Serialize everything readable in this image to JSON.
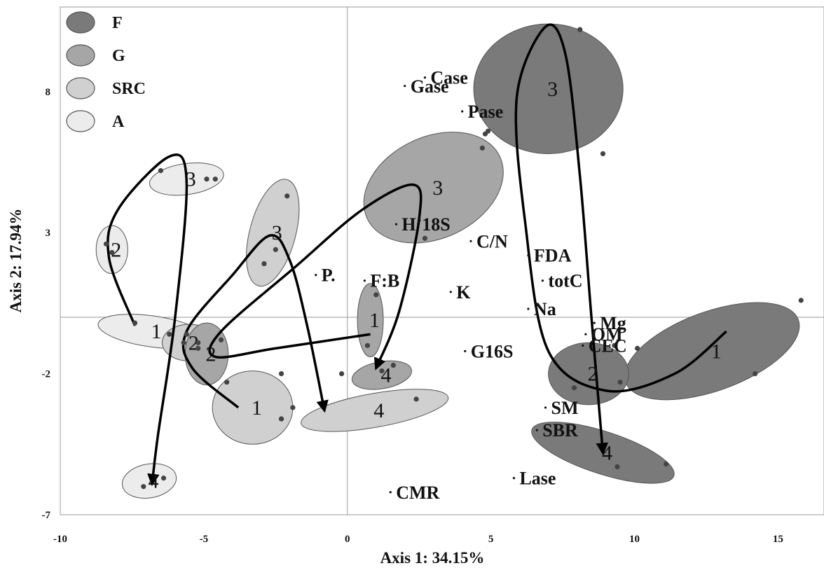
{
  "chart_data": {
    "type": "scatter",
    "xlabel": "Axis 1: 34.15%",
    "ylabel": "Axis 2: 17.94%",
    "xlim": [
      -10,
      17
    ],
    "ylim": [
      -7,
      11
    ],
    "x_ticks": [
      "-10",
      "-5",
      "0",
      "5",
      "10",
      "15"
    ],
    "y_ticks": [
      "8",
      "3",
      "-2",
      "-7"
    ],
    "legend": {
      "placement": "top-left",
      "entries": [
        {
          "name": "F",
          "color": "#7a7a7a"
        },
        {
          "name": "G",
          "color": "#a6a6a6"
        },
        {
          "name": "SRC",
          "color": "#d0d0d0"
        },
        {
          "name": "A",
          "color": "#ececec"
        }
      ]
    },
    "groups": [
      {
        "treatment": "A",
        "time": "1",
        "fill": "#ececec",
        "center": [
          -6.8,
          -0.5
        ],
        "rx": 1.9,
        "ry": 0.55,
        "rot": 8,
        "points": [
          [
            -7.4,
            -0.2
          ],
          [
            -6.2,
            -0.6
          ],
          [
            -5.7,
            -0.9
          ]
        ]
      },
      {
        "treatment": "A",
        "time": "2",
        "fill": "#ececec",
        "center": [
          -8.2,
          2.4
        ],
        "rx": 0.55,
        "ry": 0.85,
        "rot": 0,
        "points": [
          [
            -8.4,
            2.6
          ],
          [
            -8.2,
            2.3
          ]
        ]
      },
      {
        "treatment": "A",
        "time": "3",
        "fill": "#ececec",
        "center": [
          -5.6,
          4.9
        ],
        "rx": 1.3,
        "ry": 0.55,
        "rot": -8,
        "points": [
          [
            -6.5,
            5.2
          ],
          [
            -4.9,
            4.9
          ],
          [
            -4.6,
            4.9
          ]
        ]
      },
      {
        "treatment": "A",
        "time": "4",
        "fill": "#ececec",
        "center": [
          -6.9,
          -5.8
        ],
        "rx": 0.95,
        "ry": 0.6,
        "rot": -10,
        "points": [
          [
            -7.1,
            -6.0
          ],
          [
            -6.4,
            -5.7
          ]
        ]
      },
      {
        "treatment": "SRC",
        "time": "1",
        "fill": "#d0d0d0",
        "center": [
          -3.3,
          -3.2
        ],
        "rx": 1.4,
        "ry": 1.3,
        "rot": 0,
        "points": [
          [
            -4.2,
            -2.3
          ],
          [
            -2.3,
            -2.0
          ],
          [
            -1.9,
            -3.2
          ],
          [
            -2.3,
            -3.6
          ]
        ]
      },
      {
        "treatment": "SRC",
        "time": "2",
        "fill": "#d0d0d0",
        "center": [
          -5.5,
          -0.9
        ],
        "rx": 0.95,
        "ry": 0.65,
        "rot": 0,
        "points": [
          [
            -5.6,
            -0.6
          ],
          [
            -5.2,
            -1.1
          ]
        ]
      },
      {
        "treatment": "SRC",
        "time": "3",
        "fill": "#d0d0d0",
        "center": [
          -2.6,
          3.0
        ],
        "rx": 0.8,
        "ry": 1.95,
        "rot": 15,
        "points": [
          [
            -2.1,
            4.3
          ],
          [
            -2.5,
            2.4
          ],
          [
            -2.9,
            1.9
          ]
        ]
      },
      {
        "treatment": "SRC",
        "time": "4",
        "fill": "#d0d0d0",
        "center": [
          0.95,
          -3.3
        ],
        "rx": 2.6,
        "ry": 0.6,
        "rot": -10,
        "points": [
          [
            2.4,
            -2.9
          ],
          [
            -2.3,
            -3.6
          ]
        ]
      },
      {
        "treatment": "G",
        "time": "1",
        "fill": "#a6a6a6",
        "center": [
          0.8,
          -0.1
        ],
        "rx": 0.45,
        "ry": 1.3,
        "rot": 0,
        "points": [
          [
            1.0,
            0.8
          ],
          [
            0.7,
            -1.0
          ]
        ]
      },
      {
        "treatment": "G",
        "time": "2",
        "fill": "#a6a6a6",
        "center": [
          -4.9,
          -1.3
        ],
        "rx": 0.75,
        "ry": 1.1,
        "rot": 0,
        "points": [
          [
            -4.4,
            -0.8
          ],
          [
            -5.2,
            -0.9
          ]
        ]
      },
      {
        "treatment": "G",
        "time": "3",
        "fill": "#a6a6a6",
        "center": [
          3.0,
          4.6
        ],
        "rx": 2.55,
        "ry": 1.8,
        "rot": -25,
        "points": [
          [
            4.7,
            6.0
          ],
          [
            4.8,
            6.5
          ],
          [
            2.7,
            2.8
          ]
        ]
      },
      {
        "treatment": "G",
        "time": "4",
        "fill": "#a6a6a6",
        "center": [
          1.2,
          -2.05
        ],
        "rx": 1.05,
        "ry": 0.48,
        "rot": -10,
        "points": [
          [
            -0.2,
            -2.0
          ],
          [
            1.6,
            -1.7
          ],
          [
            1.2,
            -1.9
          ]
        ]
      },
      {
        "treatment": "F",
        "time": "1",
        "fill": "#7a7a7a",
        "center": [
          12.7,
          -1.2
        ],
        "rx": 3.2,
        "ry": 1.4,
        "rot": -20,
        "points": [
          [
            15.8,
            0.6
          ],
          [
            10.1,
            -1.1
          ],
          [
            14.2,
            -2.0
          ]
        ]
      },
      {
        "treatment": "F",
        "time": "2",
        "fill": "#7a7a7a",
        "center": [
          8.4,
          -2.0
        ],
        "rx": 1.4,
        "ry": 1.1,
        "rot": 0,
        "points": [
          [
            7.9,
            -2.5
          ],
          [
            9.3,
            -1.0
          ],
          [
            9.5,
            -2.3
          ]
        ]
      },
      {
        "treatment": "F",
        "time": "3",
        "fill": "#7a7a7a",
        "center": [
          7.0,
          8.1
        ],
        "rx": 2.6,
        "ry": 2.3,
        "rot": 0,
        "points": [
          [
            8.1,
            10.2
          ],
          [
            8.9,
            5.8
          ],
          [
            4.9,
            6.6
          ]
        ]
      },
      {
        "treatment": "F",
        "time": "4",
        "fill": "#7a7a7a",
        "center": [
          8.9,
          -4.8
        ],
        "rx": 2.6,
        "ry": 0.75,
        "rot": 18,
        "points": [
          [
            9.4,
            -5.3
          ],
          [
            11.1,
            -5.2
          ]
        ]
      }
    ],
    "vectors": [
      {
        "name": "Case",
        "x": 2.7,
        "y": 8.5
      },
      {
        "name": "Gase",
        "x": 2.0,
        "y": 8.2
      },
      {
        "name": "Pase",
        "x": 4.0,
        "y": 7.3
      },
      {
        "name": "H’18S",
        "x": 1.7,
        "y": 3.3
      },
      {
        "name": "C/N",
        "x": 4.3,
        "y": 2.7
      },
      {
        "name": "FDA",
        "x": 6.3,
        "y": 2.2
      },
      {
        "name": "P.",
        "x": -1.1,
        "y": 1.5
      },
      {
        "name": "F:B",
        "x": 0.6,
        "y": 1.3
      },
      {
        "name": "totC",
        "x": 6.8,
        "y": 1.3
      },
      {
        "name": "K",
        "x": 3.6,
        "y": 0.9
      },
      {
        "name": "Na",
        "x": 6.3,
        "y": 0.3
      },
      {
        "name": "Mg",
        "x": 8.6,
        "y": -0.2
      },
      {
        "name": "OM",
        "x": 8.3,
        "y": -0.6
      },
      {
        "name": "CEC",
        "x": 8.2,
        "y": -1.0
      },
      {
        "name": "G16S",
        "x": 4.1,
        "y": -1.2
      },
      {
        "name": "SM",
        "x": 6.9,
        "y": -3.2
      },
      {
        "name": "SBR",
        "x": 6.6,
        "y": -4.0
      },
      {
        "name": "Lase",
        "x": 5.8,
        "y": -5.7
      },
      {
        "name": "CMR",
        "x": 1.5,
        "y": -6.2
      }
    ],
    "trajectories": [
      {
        "treatment": "A",
        "sequence": [
          "1",
          "2",
          "3",
          "4"
        ],
        "path": [
          [
            -7.4,
            -0.3
          ],
          [
            -8.3,
            2.1
          ],
          [
            -8.0,
            3.8
          ],
          [
            -6.2,
            5.7
          ],
          [
            -5.6,
            4.8
          ],
          [
            -6.0,
            0.0
          ],
          [
            -6.6,
            -4.2
          ],
          [
            -6.8,
            -5.9
          ]
        ]
      },
      {
        "treatment": "SRC",
        "sequence": [
          "1",
          "2",
          "3",
          "4"
        ],
        "path": [
          [
            -3.8,
            -3.2
          ],
          [
            -5.4,
            -1.8
          ],
          [
            -5.6,
            -0.5
          ],
          [
            -4.0,
            1.5
          ],
          [
            -2.7,
            2.9
          ],
          [
            -2.0,
            2.0
          ],
          [
            -1.4,
            -0.3
          ],
          [
            -0.8,
            -3.3
          ]
        ]
      },
      {
        "treatment": "G",
        "sequence": [
          "1",
          "2",
          "3",
          "4"
        ],
        "path": [
          [
            0.8,
            -0.6
          ],
          [
            -2.5,
            -1.1
          ],
          [
            -4.6,
            -1.4
          ],
          [
            -4.4,
            -0.5
          ],
          [
            -1.8,
            1.8
          ],
          [
            0.5,
            3.8
          ],
          [
            2.3,
            4.7
          ],
          [
            2.5,
            3.5
          ],
          [
            1.8,
            0.2
          ],
          [
            1.0,
            -1.8
          ]
        ]
      },
      {
        "treatment": "F",
        "sequence": [
          "1",
          "2",
          "3",
          "4"
        ],
        "path": [
          [
            13.2,
            -0.5
          ],
          [
            11.4,
            -2.0
          ],
          [
            9.0,
            -2.6
          ],
          [
            7.0,
            -1.2
          ],
          [
            6.2,
            3.3
          ],
          [
            5.9,
            7.8
          ],
          [
            6.9,
            10.3
          ],
          [
            7.6,
            9.3
          ],
          [
            8.1,
            5.0
          ],
          [
            8.5,
            0.0
          ],
          [
            8.9,
            -4.8
          ]
        ]
      }
    ]
  }
}
